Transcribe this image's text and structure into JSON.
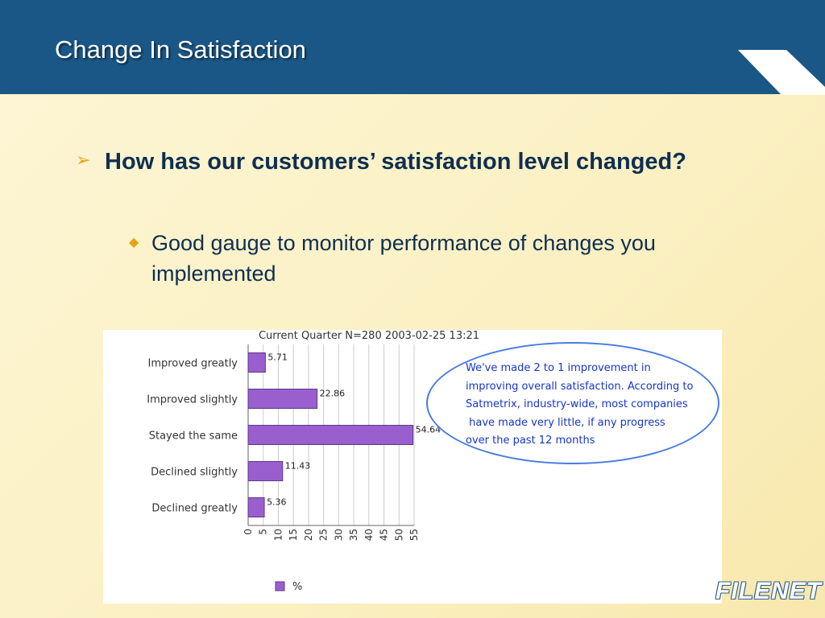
{
  "header": {
    "title": "Change In Satisfaction"
  },
  "bullets": {
    "main": "How has our customers’ satisfaction level changed?",
    "sub": "Good gauge to monitor performance of changes you implemented"
  },
  "callout": {
    "text": "We've made 2 to 1 improvement in\nimproving overall satisfaction. According to\nSatmetrix, industry-wide, most companies\n have made very little, if any progress\nover the past 12 months"
  },
  "logo": {
    "text": "FILENET"
  },
  "colors": {
    "header": "#1b5786",
    "bar": "#9a5fcf",
    "bullet_accent": "#e8a317",
    "callout_text": "#1636c8"
  },
  "chart_data": {
    "type": "bar",
    "orientation": "horizontal",
    "title": "Current Quarter N=280 2003-02-25 13:21",
    "categories": [
      "Improved greatly",
      "Improved slightly",
      "Stayed the same",
      "Declined slightly",
      "Declined greatly"
    ],
    "series": [
      {
        "name": "%",
        "values": [
          5.71,
          22.86,
          54.64,
          11.43,
          5.36
        ]
      }
    ],
    "value_labels": [
      "5.71",
      "22.86",
      "54.64",
      "11.43",
      "5.36"
    ],
    "xticks": [
      "0",
      "5",
      "10",
      "15",
      "20",
      "25",
      "30",
      "35",
      "40",
      "45",
      "50",
      "55"
    ],
    "xlim": [
      0,
      55
    ],
    "grid": true,
    "legend": "bottom"
  }
}
